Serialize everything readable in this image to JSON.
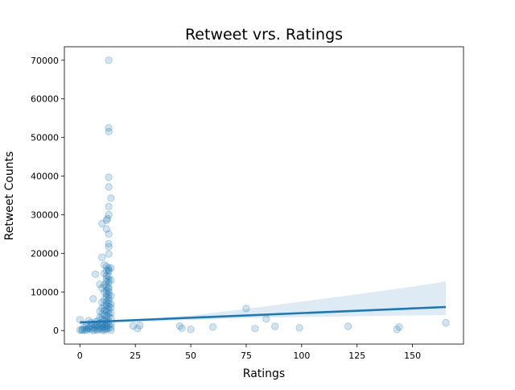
{
  "chart_data": {
    "type": "scatter",
    "title": "Retweet vrs. Ratings",
    "xlabel": "Ratings",
    "ylabel": "Retweet Counts",
    "xlim": [
      -7,
      173
    ],
    "ylim": [
      -3500,
      73500
    ],
    "xticks": [
      0,
      25,
      50,
      75,
      100,
      125,
      150
    ],
    "yticks": [
      0,
      10000,
      20000,
      30000,
      40000,
      50000,
      60000,
      70000
    ],
    "grid": false,
    "legend": "none",
    "colors": {
      "points": "#1f77b4",
      "line": "#1f77b4",
      "band": "#1f77b4"
    },
    "regression": {
      "x": [
        0,
        165
      ],
      "y": [
        2100,
        6100
      ]
    },
    "confidence_band": {
      "x": [
        0,
        10,
        25,
        50,
        75,
        100,
        125,
        150,
        165
      ],
      "lower": [
        1500,
        1900,
        2200,
        2700,
        3200,
        3500,
        3700,
        3900,
        4000
      ],
      "upper": [
        2600,
        2400,
        2700,
        3900,
        5600,
        7500,
        9400,
        11400,
        12700
      ]
    },
    "points": [
      [
        13,
        70000
      ],
      [
        13,
        52500
      ],
      [
        13,
        51500
      ],
      [
        13,
        39700
      ],
      [
        13,
        37200
      ],
      [
        14,
        34300
      ],
      [
        13,
        32100
      ],
      [
        13,
        30000
      ],
      [
        12,
        28600
      ],
      [
        12.5,
        29000
      ],
      [
        10,
        27700
      ],
      [
        12,
        26300
      ],
      [
        13,
        25000
      ],
      [
        13,
        22500
      ],
      [
        13,
        21700
      ],
      [
        13,
        19800
      ],
      [
        10,
        19000
      ],
      [
        11,
        17000
      ],
      [
        12,
        16600
      ],
      [
        13,
        16200
      ],
      [
        14,
        16200
      ],
      [
        13,
        15700
      ],
      [
        12,
        15500
      ],
      [
        13,
        15300
      ],
      [
        11,
        14800
      ],
      [
        7,
        14600
      ],
      [
        12,
        14300
      ],
      [
        13,
        14000
      ],
      [
        12,
        13400
      ],
      [
        13,
        13100
      ],
      [
        14,
        13000
      ],
      [
        12,
        12600
      ],
      [
        13,
        12400
      ],
      [
        9,
        12000
      ],
      [
        11,
        11800
      ],
      [
        12,
        11400
      ],
      [
        13,
        11200
      ],
      [
        10,
        11000
      ],
      [
        13,
        10800
      ],
      [
        12,
        10400
      ],
      [
        13,
        10000
      ],
      [
        11,
        9900
      ],
      [
        12,
        9500
      ],
      [
        13,
        9300
      ],
      [
        14,
        9000
      ],
      [
        12,
        8700
      ],
      [
        13,
        8400
      ],
      [
        6,
        8200
      ],
      [
        11,
        8000
      ],
      [
        13,
        7800
      ],
      [
        12,
        7500
      ],
      [
        10,
        7300
      ],
      [
        13,
        7100
      ],
      [
        14,
        6900
      ],
      [
        12,
        6600
      ],
      [
        11,
        6400
      ],
      [
        13,
        6200
      ],
      [
        14,
        6000
      ],
      [
        10,
        5800
      ],
      [
        12,
        5600
      ],
      [
        13,
        5400
      ],
      [
        11,
        5200
      ],
      [
        9,
        5000
      ],
      [
        12,
        4800
      ],
      [
        14,
        4600
      ],
      [
        13,
        4400
      ],
      [
        10,
        4200
      ],
      [
        11,
        4000
      ],
      [
        12,
        3800
      ],
      [
        13,
        3600
      ],
      [
        9,
        3400
      ],
      [
        14,
        3200
      ],
      [
        10,
        3000
      ],
      [
        12,
        2800
      ],
      [
        11,
        2600
      ],
      [
        8,
        2500
      ],
      [
        13,
        2400
      ],
      [
        7,
        2200
      ],
      [
        10,
        2100
      ],
      [
        12,
        2000
      ],
      [
        9,
        1900
      ],
      [
        11,
        1800
      ],
      [
        14,
        1700
      ],
      [
        6,
        1600
      ],
      [
        10,
        1500
      ],
      [
        13,
        1400
      ],
      [
        8,
        1300
      ],
      [
        12,
        1200
      ],
      [
        5,
        1100
      ],
      [
        11,
        1000
      ],
      [
        9,
        950
      ],
      [
        7,
        900
      ],
      [
        14,
        850
      ],
      [
        10,
        800
      ],
      [
        4,
        750
      ],
      [
        12,
        700
      ],
      [
        6,
        650
      ],
      [
        13,
        600
      ],
      [
        8,
        550
      ],
      [
        11,
        500
      ],
      [
        3,
        450
      ],
      [
        9,
        400
      ],
      [
        5,
        350
      ],
      [
        12,
        300
      ],
      [
        7,
        250
      ],
      [
        10,
        200
      ],
      [
        2,
        150
      ],
      [
        14,
        100
      ],
      [
        8,
        80
      ],
      [
        1,
        60
      ],
      [
        11,
        40
      ],
      [
        6,
        20
      ],
      [
        4,
        500
      ],
      [
        3,
        1200
      ],
      [
        2,
        800
      ],
      [
        5,
        2000
      ],
      [
        7,
        1500
      ],
      [
        4,
        2600
      ],
      [
        0,
        2800
      ],
      [
        1,
        300
      ],
      [
        0,
        150
      ],
      [
        3,
        100
      ],
      [
        24,
        1200
      ],
      [
        26,
        500
      ],
      [
        27,
        1300
      ],
      [
        45,
        1200
      ],
      [
        46,
        600
      ],
      [
        50,
        300
      ],
      [
        60,
        900
      ],
      [
        75,
        5700
      ],
      [
        79,
        500
      ],
      [
        84,
        3000
      ],
      [
        88,
        1100
      ],
      [
        99,
        700
      ],
      [
        121,
        1100
      ],
      [
        143,
        300
      ],
      [
        144,
        900
      ],
      [
        165,
        2000
      ]
    ]
  }
}
